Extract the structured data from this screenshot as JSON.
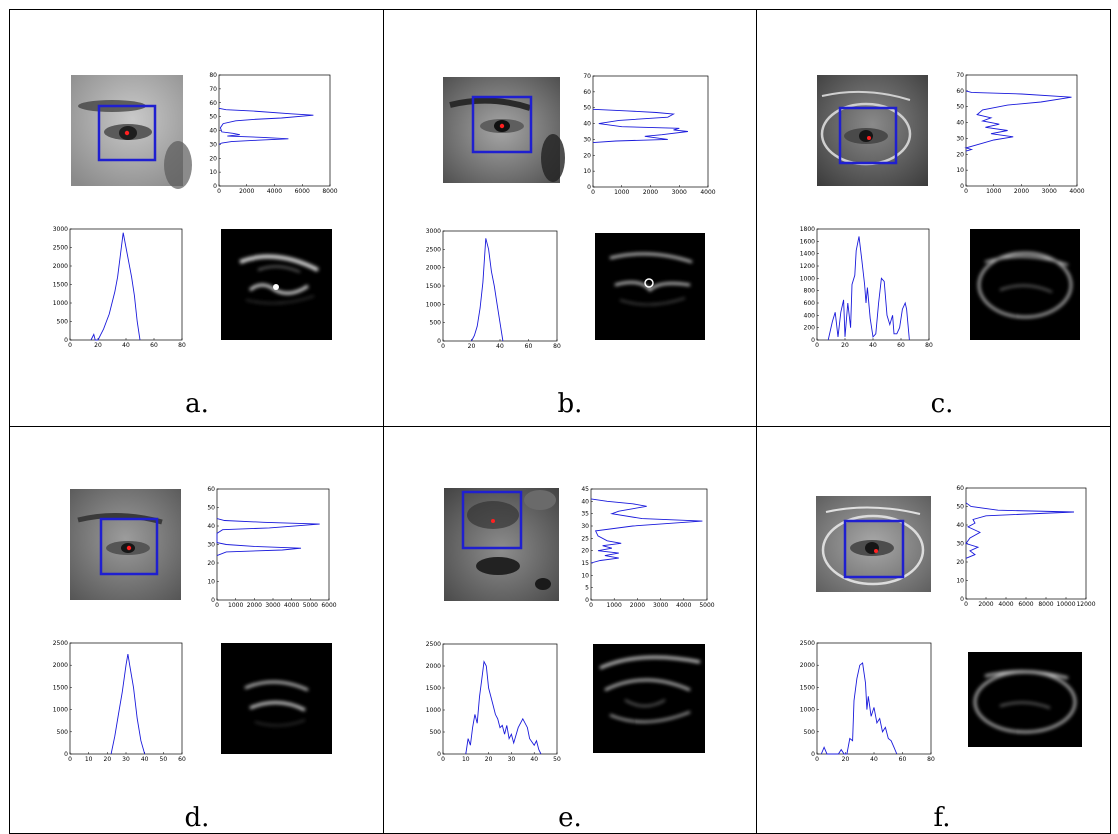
{
  "colors": {
    "curve": "#1a1adb",
    "box": "#1f1fd0",
    "pupil": "#ff2020"
  },
  "panels": [
    {
      "caption": "a.",
      "vertical_projection": {
        "type": "line",
        "orientation": "horizontal",
        "xlim": [
          0,
          8000
        ],
        "xticks": [
          "0",
          "2000",
          "4000",
          "6000",
          "8000"
        ],
        "ylim": [
          0,
          80
        ],
        "yticks": [
          "0",
          "10",
          "20",
          "30",
          "40",
          "50",
          "60",
          "70",
          "80"
        ],
        "points": [
          [
            0,
            30
          ],
          [
            200,
            31
          ],
          [
            900,
            32
          ],
          [
            2800,
            33
          ],
          [
            5000,
            34
          ],
          [
            3200,
            35
          ],
          [
            600,
            36
          ],
          [
            1500,
            37
          ],
          [
            1000,
            38
          ],
          [
            200,
            39
          ],
          [
            100,
            42
          ],
          [
            300,
            45
          ],
          [
            1200,
            47
          ],
          [
            2500,
            48
          ],
          [
            4500,
            49
          ],
          [
            6800,
            51
          ],
          [
            5200,
            52
          ],
          [
            2500,
            54
          ],
          [
            500,
            55
          ],
          [
            0,
            56
          ]
        ]
      },
      "horizontal_projection": {
        "type": "line",
        "xlim": [
          0,
          80
        ],
        "xticks": [
          "0",
          "20",
          "40",
          "60",
          "80"
        ],
        "ylim": [
          0,
          3000
        ],
        "yticks": [
          "0",
          "500",
          "1000",
          "1500",
          "2000",
          "2500",
          "3000"
        ],
        "points": [
          [
            15,
            0
          ],
          [
            17,
            150
          ],
          [
            18,
            0
          ],
          [
            20,
            0
          ],
          [
            22,
            150
          ],
          [
            24,
            300
          ],
          [
            26,
            500
          ],
          [
            28,
            700
          ],
          [
            30,
            1000
          ],
          [
            32,
            1300
          ],
          [
            34,
            1700
          ],
          [
            36,
            2300
          ],
          [
            38,
            2900
          ],
          [
            40,
            2500
          ],
          [
            42,
            2100
          ],
          [
            44,
            1700
          ],
          [
            46,
            1200
          ],
          [
            48,
            500
          ],
          [
            50,
            0
          ]
        ]
      }
    },
    {
      "caption": "b.",
      "vertical_projection": {
        "type": "line",
        "orientation": "horizontal",
        "xlim": [
          0,
          4000
        ],
        "xticks": [
          "0",
          "1000",
          "2000",
          "3000",
          "4000"
        ],
        "ylim": [
          0,
          70
        ],
        "yticks": [
          "0",
          "10",
          "20",
          "30",
          "40",
          "50",
          "60",
          "70"
        ],
        "points": [
          [
            0,
            28
          ],
          [
            800,
            29
          ],
          [
            2600,
            30
          ],
          [
            1800,
            32
          ],
          [
            2400,
            33
          ],
          [
            3300,
            35
          ],
          [
            2800,
            36
          ],
          [
            3000,
            37
          ],
          [
            1000,
            38
          ],
          [
            200,
            40
          ],
          [
            900,
            42
          ],
          [
            2600,
            44
          ],
          [
            2800,
            46
          ],
          [
            2200,
            47
          ],
          [
            1200,
            48
          ],
          [
            0,
            49
          ]
        ]
      },
      "horizontal_projection": {
        "type": "line",
        "xlim": [
          0,
          80
        ],
        "xticks": [
          "0",
          "20",
          "40",
          "60",
          "80"
        ],
        "ylim": [
          0,
          3000
        ],
        "yticks": [
          "0",
          "500",
          "1000",
          "1500",
          "2000",
          "2500",
          "3000"
        ],
        "points": [
          [
            20,
            0
          ],
          [
            22,
            150
          ],
          [
            24,
            400
          ],
          [
            26,
            900
          ],
          [
            28,
            1600
          ],
          [
            30,
            2800
          ],
          [
            32,
            2500
          ],
          [
            34,
            1900
          ],
          [
            36,
            1500
          ],
          [
            38,
            1000
          ],
          [
            40,
            500
          ],
          [
            42,
            0
          ]
        ]
      }
    },
    {
      "caption": "c.",
      "vertical_projection": {
        "type": "line",
        "orientation": "horizontal",
        "xlim": [
          0,
          4000
        ],
        "xticks": [
          "0",
          "1000",
          "2000",
          "3000",
          "4000"
        ],
        "ylim": [
          0,
          70
        ],
        "yticks": [
          "0",
          "10",
          "20",
          "30",
          "40",
          "50",
          "60",
          "70"
        ],
        "points": [
          [
            0,
            22
          ],
          [
            200,
            23
          ],
          [
            0,
            24
          ],
          [
            600,
            27
          ],
          [
            1000,
            29
          ],
          [
            1700,
            31
          ],
          [
            900,
            33
          ],
          [
            1500,
            35
          ],
          [
            700,
            37
          ],
          [
            1200,
            39
          ],
          [
            600,
            41
          ],
          [
            900,
            43
          ],
          [
            400,
            45
          ],
          [
            600,
            48
          ],
          [
            1500,
            51
          ],
          [
            2700,
            53
          ],
          [
            3800,
            56
          ],
          [
            2000,
            58
          ],
          [
            200,
            59
          ],
          [
            0,
            60
          ]
        ]
      },
      "horizontal_projection": {
        "type": "line",
        "xlim": [
          0,
          80
        ],
        "xticks": [
          "0",
          "20",
          "40",
          "60",
          "80"
        ],
        "ylim": [
          0,
          1800
        ],
        "yticks": [
          "0",
          "200",
          "400",
          "600",
          "800",
          "1000",
          "1200",
          "1400",
          "1600",
          "1800"
        ],
        "points": [
          [
            8,
            0
          ],
          [
            11,
            300
          ],
          [
            13,
            450
          ],
          [
            15,
            50
          ],
          [
            17,
            450
          ],
          [
            19,
            650
          ],
          [
            20,
            50
          ],
          [
            22,
            600
          ],
          [
            24,
            200
          ],
          [
            25,
            900
          ],
          [
            27,
            1050
          ],
          [
            28,
            1450
          ],
          [
            30,
            1680
          ],
          [
            32,
            1300
          ],
          [
            34,
            900
          ],
          [
            35,
            600
          ],
          [
            36,
            850
          ],
          [
            38,
            350
          ],
          [
            40,
            50
          ],
          [
            42,
            100
          ],
          [
            44,
            600
          ],
          [
            46,
            1000
          ],
          [
            48,
            950
          ],
          [
            50,
            400
          ],
          [
            52,
            250
          ],
          [
            54,
            400
          ],
          [
            55,
            100
          ],
          [
            57,
            100
          ],
          [
            59,
            200
          ],
          [
            61,
            500
          ],
          [
            63,
            600
          ],
          [
            64,
            500
          ],
          [
            66,
            0
          ]
        ]
      }
    },
    {
      "caption": "d.",
      "vertical_projection": {
        "type": "line",
        "orientation": "horizontal",
        "xlim": [
          0,
          6000
        ],
        "xticks": [
          "0",
          "1000",
          "2000",
          "3000",
          "4000",
          "5000",
          "6000"
        ],
        "ylim": [
          0,
          60
        ],
        "yticks": [
          "0",
          "10",
          "20",
          "30",
          "40",
          "50",
          "60"
        ],
        "points": [
          [
            0,
            24
          ],
          [
            500,
            26
          ],
          [
            3500,
            27
          ],
          [
            4500,
            28
          ],
          [
            2000,
            29
          ],
          [
            500,
            30
          ],
          [
            0,
            31
          ],
          [
            0,
            36
          ],
          [
            300,
            38
          ],
          [
            2800,
            39
          ],
          [
            5500,
            41
          ],
          [
            2500,
            42
          ],
          [
            400,
            43
          ],
          [
            0,
            44
          ]
        ]
      },
      "horizontal_projection": {
        "type": "line",
        "xlim": [
          0,
          60
        ],
        "xticks": [
          "0",
          "10",
          "20",
          "30",
          "40",
          "50",
          "60"
        ],
        "ylim": [
          0,
          2500
        ],
        "yticks": [
          "0",
          "500",
          "1000",
          "1500",
          "2000",
          "2500"
        ],
        "points": [
          [
            22,
            0
          ],
          [
            24,
            400
          ],
          [
            26,
            900
          ],
          [
            28,
            1400
          ],
          [
            30,
            2000
          ],
          [
            31,
            2250
          ],
          [
            32,
            2000
          ],
          [
            34,
            1500
          ],
          [
            36,
            800
          ],
          [
            38,
            300
          ],
          [
            40,
            0
          ]
        ]
      }
    },
    {
      "caption": "e.",
      "vertical_projection": {
        "type": "line",
        "orientation": "horizontal",
        "xlim": [
          0,
          5000
        ],
        "xticks": [
          "0",
          "1000",
          "2000",
          "3000",
          "4000",
          "5000"
        ],
        "ylim": [
          0,
          45
        ],
        "yticks": [
          "0",
          "5",
          "10",
          "15",
          "20",
          "25",
          "30",
          "35",
          "40",
          "45"
        ],
        "points": [
          [
            0,
            15
          ],
          [
            400,
            16
          ],
          [
            1200,
            17
          ],
          [
            600,
            18
          ],
          [
            1200,
            19
          ],
          [
            300,
            20
          ],
          [
            900,
            21
          ],
          [
            500,
            22
          ],
          [
            1300,
            23
          ],
          [
            700,
            24
          ],
          [
            300,
            26
          ],
          [
            200,
            28
          ],
          [
            1800,
            30
          ],
          [
            4800,
            32
          ],
          [
            2200,
            33
          ],
          [
            900,
            35
          ],
          [
            1200,
            36
          ],
          [
            2400,
            38
          ],
          [
            1800,
            39
          ],
          [
            700,
            40
          ],
          [
            0,
            41
          ]
        ]
      },
      "horizontal_projection": {
        "type": "line",
        "xlim": [
          0,
          50
        ],
        "xticks": [
          "0",
          "10",
          "20",
          "30",
          "40",
          "50"
        ],
        "ylim": [
          0,
          2500
        ],
        "yticks": [
          "0",
          "500",
          "1000",
          "1500",
          "2000",
          "2500"
        ],
        "points": [
          [
            10,
            0
          ],
          [
            11,
            350
          ],
          [
            12,
            200
          ],
          [
            13,
            600
          ],
          [
            14,
            900
          ],
          [
            15,
            700
          ],
          [
            16,
            1300
          ],
          [
            17,
            1700
          ],
          [
            18,
            2100
          ],
          [
            19,
            2000
          ],
          [
            20,
            1500
          ],
          [
            21,
            1300
          ],
          [
            22,
            1100
          ],
          [
            23,
            900
          ],
          [
            24,
            800
          ],
          [
            25,
            600
          ],
          [
            26,
            650
          ],
          [
            27,
            450
          ],
          [
            28,
            650
          ],
          [
            29,
            350
          ],
          [
            30,
            450
          ],
          [
            31,
            250
          ],
          [
            33,
            600
          ],
          [
            35,
            800
          ],
          [
            37,
            600
          ],
          [
            38,
            350
          ],
          [
            40,
            200
          ],
          [
            41,
            300
          ],
          [
            42,
            100
          ],
          [
            43,
            0
          ]
        ]
      }
    },
    {
      "caption": "f.",
      "vertical_projection": {
        "type": "line",
        "orientation": "horizontal",
        "xlim": [
          0,
          12000
        ],
        "xticks": [
          "0",
          "2000",
          "4000",
          "6000",
          "8000",
          "10000",
          "12000"
        ],
        "ylim": [
          0,
          60
        ],
        "yticks": [
          "0",
          "10",
          "20",
          "30",
          "40",
          "50",
          "60"
        ],
        "points": [
          [
            0,
            22
          ],
          [
            900,
            24
          ],
          [
            400,
            26
          ],
          [
            1200,
            28
          ],
          [
            0,
            30
          ],
          [
            400,
            33
          ],
          [
            1400,
            36
          ],
          [
            200,
            39
          ],
          [
            900,
            41
          ],
          [
            700,
            43
          ],
          [
            2000,
            45
          ],
          [
            10800,
            47
          ],
          [
            3200,
            48
          ],
          [
            500,
            50
          ],
          [
            0,
            52
          ]
        ]
      },
      "horizontal_projection": {
        "type": "line",
        "xlim": [
          0,
          80
        ],
        "xticks": [
          "0",
          "20",
          "40",
          "60",
          "80"
        ],
        "ylim": [
          0,
          2500
        ],
        "yticks": [
          "0",
          "500",
          "1000",
          "1500",
          "2000",
          "2500"
        ],
        "points": [
          [
            3,
            0
          ],
          [
            5,
            150
          ],
          [
            7,
            0
          ],
          [
            15,
            0
          ],
          [
            17,
            100
          ],
          [
            19,
            0
          ],
          [
            21,
            0
          ],
          [
            23,
            350
          ],
          [
            25,
            300
          ],
          [
            26,
            1200
          ],
          [
            28,
            1700
          ],
          [
            30,
            2000
          ],
          [
            32,
            2050
          ],
          [
            34,
            1600
          ],
          [
            35,
            1000
          ],
          [
            36,
            1300
          ],
          [
            38,
            850
          ],
          [
            40,
            1050
          ],
          [
            42,
            700
          ],
          [
            44,
            800
          ],
          [
            46,
            500
          ],
          [
            48,
            600
          ],
          [
            50,
            350
          ],
          [
            52,
            300
          ],
          [
            54,
            150
          ],
          [
            56,
            0
          ]
        ]
      }
    }
  ]
}
